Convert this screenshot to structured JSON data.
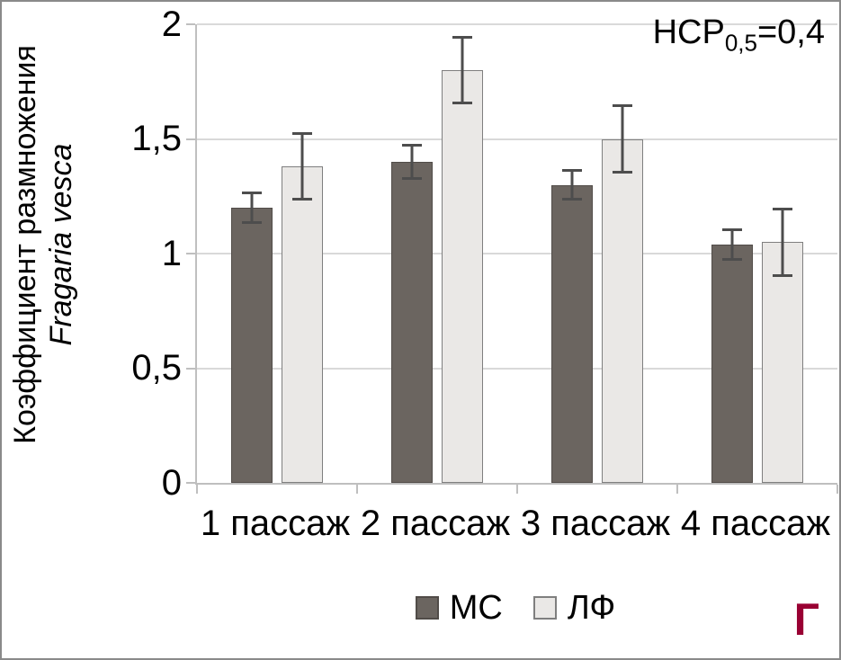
{
  "labels": {
    "ylabel_line1": "Коэффициент размножения",
    "ylabel_line2": "Fragaria vesca",
    "corner": "Г"
  },
  "annotation": {
    "prefix": "НСР",
    "sub": "0,5",
    "suffix": "=0,4",
    "full_text": "НСР0,5=0,4"
  },
  "colors": {
    "series_mc_fill": "#6b6560",
    "series_mc_border": "#514c48",
    "series_lf_fill": "#eae8e6",
    "series_lf_border": "#7f7f7f",
    "error_bar": "#4d4d4d",
    "gridline": "#d9d9d9",
    "axis": "#bfbfbf",
    "corner_letter": "#990033"
  },
  "chart_data": {
    "type": "bar",
    "title": "",
    "ylabel": "Коэффициент размножения Fragaria vesca",
    "xlabel": "",
    "categories": [
      "1 пассаж",
      "2 пассаж",
      "3 пассаж",
      "4 пассаж"
    ],
    "series": [
      {
        "name": "МС",
        "values": [
          1.2,
          1.4,
          1.3,
          1.04
        ],
        "errors": [
          0.07,
          0.08,
          0.07,
          0.07
        ],
        "color": "#6b6560",
        "border_color": "#514c48"
      },
      {
        "name": "ЛФ",
        "values": [
          1.38,
          1.8,
          1.5,
          1.05
        ],
        "errors": [
          0.15,
          0.15,
          0.15,
          0.15
        ],
        "color": "#eae8e6",
        "border_color": "#7f7f7f"
      }
    ],
    "ylim": [
      0,
      2
    ],
    "ytick_values": [
      2,
      1.5,
      1,
      0.5,
      0
    ],
    "ytick_labels": [
      "2",
      "1,5",
      "1",
      "0,5",
      "0"
    ],
    "grid": true,
    "legend_position": "bottom",
    "annotation": "НСР0,5=0,4",
    "panel_letter": "Г"
  }
}
